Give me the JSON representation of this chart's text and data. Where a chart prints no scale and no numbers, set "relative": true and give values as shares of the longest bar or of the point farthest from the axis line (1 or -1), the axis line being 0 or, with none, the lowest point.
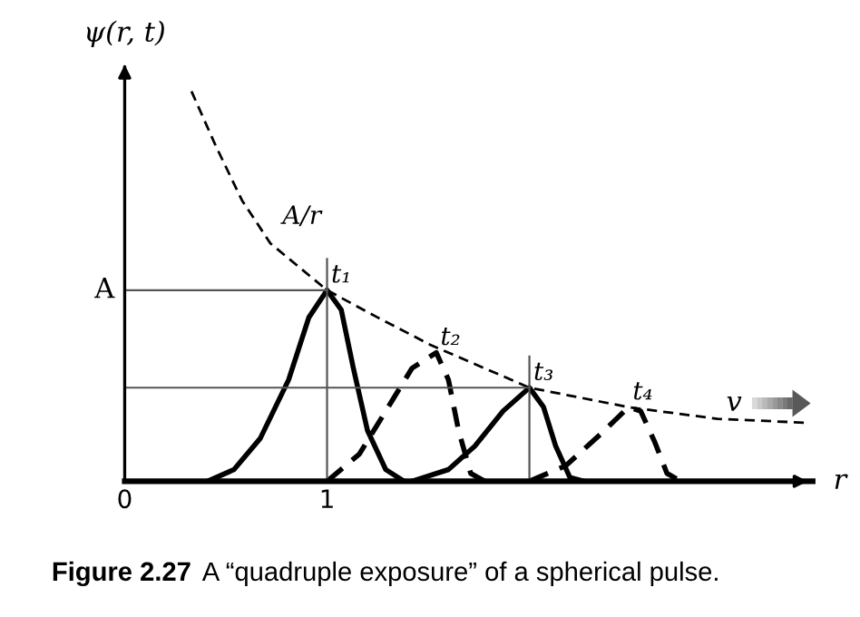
{
  "chart_data": {
    "type": "line",
    "relative": true,
    "xlabel": "r",
    "ylabel": "ψ(r, t)",
    "xlim": [
      0,
      3.4
    ],
    "xticks": [
      0,
      1
    ],
    "grid": false,
    "legend": false,
    "marker": "none",
    "series": [
      {
        "name": "A/r",
        "color": "#000000",
        "line_style": "dashed",
        "x": [
          0.33,
          0.45,
          0.58,
          0.72,
          1.0,
          1.25,
          1.51,
          2.0,
          2.49,
          2.93,
          3.37
        ],
        "values": [
          1.0,
          0.86,
          0.72,
          0.61,
          0.49,
          0.42,
          0.35,
          0.24,
          0.19,
          0.16,
          0.15
        ]
      },
      {
        "name": "t₁",
        "color": "#000000",
        "line_style": "solid",
        "x": [
          0.41,
          0.54,
          0.67,
          0.81,
          0.91,
          1.0,
          1.07,
          1.13,
          1.2,
          1.29,
          1.38
        ],
        "values": [
          0,
          0.03,
          0.11,
          0.26,
          0.42,
          0.49,
          0.44,
          0.29,
          0.13,
          0.03,
          0
        ]
      },
      {
        "name": "t₂",
        "color": "#000000",
        "line_style": "dashed",
        "x": [
          1.0,
          1.16,
          1.29,
          1.42,
          1.54,
          1.6,
          1.65,
          1.71,
          1.78
        ],
        "values": [
          0,
          0.07,
          0.18,
          0.29,
          0.33,
          0.26,
          0.13,
          0.02,
          0
        ]
      },
      {
        "name": "t₃",
        "color": "#000000",
        "line_style": "solid",
        "x": [
          1.42,
          1.6,
          1.73,
          1.87,
          2.0,
          2.07,
          2.13,
          2.2,
          2.27
        ],
        "values": [
          0,
          0.03,
          0.09,
          0.18,
          0.24,
          0.19,
          0.09,
          0.01,
          0
        ]
      },
      {
        "name": "t₄",
        "color": "#000000",
        "line_style": "dashed",
        "x": [
          2.0,
          2.18,
          2.35,
          2.49,
          2.55,
          2.62,
          2.68,
          2.75
        ],
        "values": [
          0,
          0.04,
          0.12,
          0.19,
          0.18,
          0.1,
          0.02,
          0
        ]
      }
    ],
    "ref_lines": [
      {
        "axis": "y",
        "value": 0.49,
        "label": "A",
        "color": "#555555"
      },
      {
        "axis": "y",
        "value": 0.24,
        "color": "#555555"
      },
      {
        "axis": "x",
        "value": 1.0,
        "color": "#555555"
      },
      {
        "axis": "x",
        "value": 2.0,
        "color": "#555555"
      }
    ],
    "annotations": [
      "v",
      "Figure 2.27",
      "A “quadruple exposure” of a spherical pulse."
    ]
  }
}
